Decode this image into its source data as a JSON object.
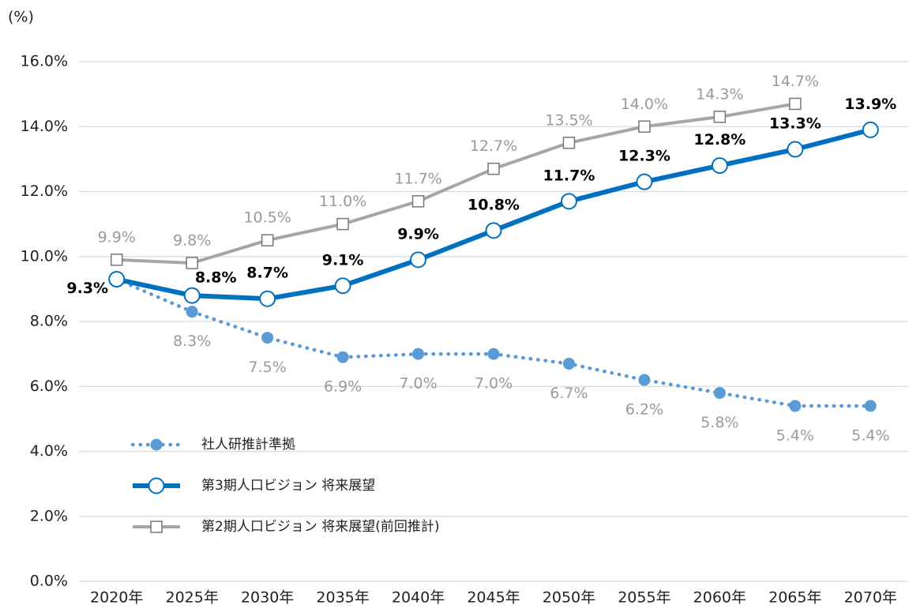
{
  "chart_data": {
    "type": "line",
    "y_unit_label": "(%)",
    "categories": [
      "2020年",
      "2025年",
      "2030年",
      "2035年",
      "2040年",
      "2045年",
      "2050年",
      "2055年",
      "2060年",
      "2065年",
      "2070年"
    ],
    "series": [
      {
        "name": "社人研推計準拠",
        "color": "#5b9bd5",
        "line_style": "dotted",
        "marker": "dot",
        "values": [
          9.3,
          8.3,
          7.5,
          6.9,
          7.0,
          7.0,
          6.7,
          6.2,
          5.8,
          5.4,
          5.4
        ],
        "value_labels": [
          null,
          "8.3%",
          "7.5%",
          "6.9%",
          "7.0%",
          "7.0%",
          "6.7%",
          "6.2%",
          "5.8%",
          "5.4%",
          "5.4%"
        ]
      },
      {
        "name": "第3期人口ビジョン 将来展望",
        "color": "#0070c0",
        "line_style": "solid",
        "marker": "circle",
        "values": [
          9.3,
          8.8,
          8.7,
          9.1,
          9.9,
          10.8,
          11.7,
          12.3,
          12.8,
          13.3,
          13.9
        ],
        "value_labels": [
          "9.3%",
          "8.8%",
          "8.7%",
          "9.1%",
          "9.9%",
          "10.8%",
          "11.7%",
          "12.3%",
          "12.8%",
          "13.3%",
          "13.9%"
        ]
      },
      {
        "name": "第2期人口ビジョン 将来展望(前回推計)",
        "color": "#a6a6a6",
        "line_style": "solid",
        "marker": "square",
        "values": [
          9.9,
          9.8,
          10.5,
          11.0,
          11.7,
          12.7,
          13.5,
          14.0,
          14.3,
          14.7,
          null
        ],
        "value_labels": [
          "9.9%",
          "9.8%",
          "10.5%",
          "11.0%",
          "11.7%",
          "12.7%",
          "13.5%",
          "14.0%",
          "14.3%",
          "14.7%",
          null
        ]
      }
    ],
    "ylim": [
      0,
      16
    ],
    "yticks": [
      {
        "value": 0,
        "label": "0.0%"
      },
      {
        "value": 2,
        "label": "2.0%"
      },
      {
        "value": 4,
        "label": "4.0%"
      },
      {
        "value": 6,
        "label": "6.0%"
      },
      {
        "value": 8,
        "label": "8.0%"
      },
      {
        "value": 10,
        "label": "10.0%"
      },
      {
        "value": 12,
        "label": "12.0%"
      },
      {
        "value": 14,
        "label": "14.0%"
      },
      {
        "value": 16,
        "label": "16.0%"
      }
    ],
    "grid": true,
    "legend": "lower left"
  }
}
